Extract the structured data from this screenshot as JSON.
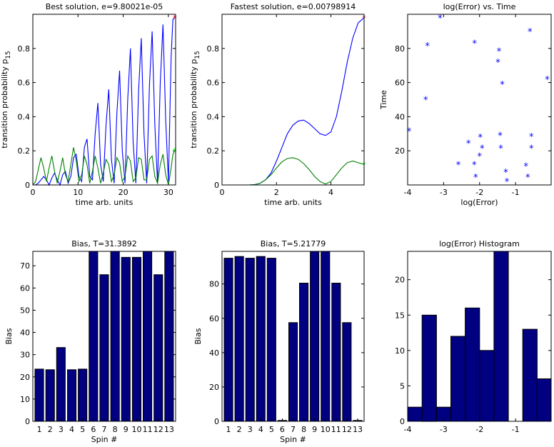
{
  "chart_data": [
    {
      "id": "best",
      "type": "line",
      "title": "Best solution, e=9.80021e-05",
      "xlabel": "time arb. units",
      "ylabel_main": "transition probability p",
      "ylabel_sub": "15",
      "xlim": [
        0,
        31.6
      ],
      "ylim": [
        0,
        1
      ],
      "xticks": [
        0,
        10,
        20,
        30
      ],
      "xtick_labels": [
        "0",
        "10",
        "20",
        "30"
      ],
      "yticks": [
        0,
        0.2,
        0.4,
        0.6,
        0.8
      ],
      "ytick_labels": [
        "0",
        "0.2",
        "0.4",
        "0.6",
        "0.8"
      ],
      "series": [
        {
          "name": "blue",
          "color": "#0000ff",
          "x": [
            0,
            0.6,
            1.2,
            1.8,
            2.4,
            3.0,
            3.6,
            4.2,
            4.8,
            5.4,
            6.0,
            6.6,
            7.2,
            7.8,
            8.4,
            9.0,
            9.6,
            10.2,
            10.8,
            11.4,
            12.0,
            12.6,
            13.2,
            13.8,
            14.4,
            15.0,
            15.6,
            16.2,
            16.8,
            17.4,
            18.0,
            18.6,
            19.2,
            19.8,
            20.4,
            21.0,
            21.6,
            22.2,
            22.8,
            23.4,
            24.0,
            24.6,
            25.2,
            25.8,
            26.4,
            27.0,
            27.6,
            28.2,
            28.8,
            29.4,
            30.0,
            30.6,
            31.0,
            31.4
          ],
          "values": [
            0,
            0.0,
            0.01,
            0.03,
            0.05,
            0.03,
            0.0,
            0.04,
            0.07,
            0.03,
            0.0,
            0.06,
            0.08,
            0.01,
            0.05,
            0.16,
            0.18,
            0.05,
            0.02,
            0.22,
            0.27,
            0.05,
            0.03,
            0.3,
            0.48,
            0.12,
            0.02,
            0.35,
            0.56,
            0.15,
            0.01,
            0.42,
            0.67,
            0.2,
            0.01,
            0.5,
            0.8,
            0.25,
            0.01,
            0.55,
            0.86,
            0.3,
            0.01,
            0.58,
            0.9,
            0.35,
            0.01,
            0.6,
            0.94,
            0.38,
            0.02,
            0.75,
            0.97,
            0.98
          ]
        },
        {
          "name": "green",
          "color": "#008000",
          "x": [
            0,
            0.6,
            1.2,
            1.8,
            2.4,
            3.0,
            3.6,
            4.2,
            4.8,
            5.4,
            6.0,
            6.6,
            7.2,
            7.8,
            8.4,
            9.0,
            9.6,
            10.2,
            10.8,
            11.4,
            12.0,
            12.6,
            13.2,
            13.8,
            14.4,
            15.0,
            15.6,
            16.2,
            16.8,
            17.4,
            18.0,
            18.6,
            19.2,
            19.8,
            20.4,
            21.0,
            21.6,
            22.2,
            22.8,
            23.4,
            24.0,
            24.6,
            25.2,
            25.8,
            26.4,
            27.0,
            27.6,
            28.2,
            28.8,
            29.4,
            30.0,
            30.6,
            31.0,
            31.4
          ],
          "values": [
            0,
            0.02,
            0.09,
            0.16,
            0.1,
            0.02,
            0.1,
            0.17,
            0.08,
            0.01,
            0.08,
            0.16,
            0.06,
            0.02,
            0.12,
            0.22,
            0.14,
            0.02,
            0.06,
            0.17,
            0.12,
            0.01,
            0.08,
            0.17,
            0.1,
            0.01,
            0.07,
            0.15,
            0.12,
            0.02,
            0.06,
            0.16,
            0.13,
            0.02,
            0.05,
            0.17,
            0.14,
            0.02,
            0.04,
            0.16,
            0.15,
            0.03,
            0.03,
            0.15,
            0.17,
            0.05,
            0.01,
            0.12,
            0.18,
            0.06,
            0.0,
            0.1,
            0.18,
            0.2
          ]
        }
      ],
      "markers": [
        {
          "x": 31.4,
          "y": 0.98,
          "color": "#ff0000"
        },
        {
          "x": 31.4,
          "y": 0.2,
          "color": "#00ff00"
        }
      ]
    },
    {
      "id": "fastest",
      "type": "line",
      "title": "Fastest solution, e=0.00798914",
      "xlabel": "time arb. units",
      "ylabel_main": "transition probability p",
      "ylabel_sub": "15",
      "xlim": [
        0,
        5.218
      ],
      "ylim": [
        0,
        1
      ],
      "xticks": [
        0,
        2,
        4
      ],
      "xtick_labels": [
        "0",
        "2",
        "4"
      ],
      "yticks": [
        0,
        0.2,
        0.4,
        0.6,
        0.8
      ],
      "ytick_labels": [
        "0",
        "0.2",
        "0.4",
        "0.6",
        "0.8"
      ],
      "series": [
        {
          "name": "blue",
          "color": "#0000ff",
          "x": [
            0,
            0.5,
            1.0,
            1.2,
            1.4,
            1.6,
            1.8,
            2.0,
            2.2,
            2.4,
            2.6,
            2.8,
            3.0,
            3.2,
            3.4,
            3.6,
            3.8,
            4.0,
            4.2,
            4.4,
            4.6,
            4.8,
            5.0,
            5.218
          ],
          "values": [
            0,
            0,
            0,
            0.002,
            0.01,
            0.03,
            0.07,
            0.14,
            0.22,
            0.3,
            0.35,
            0.375,
            0.38,
            0.36,
            0.33,
            0.3,
            0.29,
            0.31,
            0.4,
            0.55,
            0.72,
            0.86,
            0.95,
            0.98
          ]
        },
        {
          "name": "green",
          "color": "#008000",
          "x": [
            0,
            0.5,
            1.0,
            1.2,
            1.4,
            1.6,
            1.8,
            2.0,
            2.2,
            2.4,
            2.6,
            2.8,
            3.0,
            3.2,
            3.4,
            3.6,
            3.8,
            4.0,
            4.2,
            4.4,
            4.6,
            4.8,
            5.0,
            5.218
          ],
          "values": [
            0,
            0,
            0,
            0.002,
            0.01,
            0.03,
            0.06,
            0.1,
            0.135,
            0.155,
            0.16,
            0.15,
            0.125,
            0.09,
            0.05,
            0.02,
            0.005,
            0.02,
            0.06,
            0.1,
            0.13,
            0.14,
            0.13,
            0.12
          ]
        }
      ],
      "markers": [
        {
          "x": 5.218,
          "y": 0.98,
          "color": "#ff0000"
        },
        {
          "x": 5.218,
          "y": 0.12,
          "color": "#00ff00"
        }
      ]
    },
    {
      "id": "logerr-time",
      "type": "scatter",
      "title": "log(Error) vs. Time",
      "xlabel": "log(Error)",
      "ylabel": "Time",
      "xlim": [
        -4,
        -0.01
      ],
      "ylim": [
        0,
        100
      ],
      "xticks": [
        -4,
        -3,
        -2,
        -1
      ],
      "xtick_labels": [
        "-4",
        "-3",
        "-2",
        "-1"
      ],
      "yticks": [
        20,
        40,
        60,
        80
      ],
      "ytick_labels": [
        "20",
        "40",
        "60",
        "80"
      ],
      "marker_color": "#0000ff",
      "x": [
        -3.1,
        -3.45,
        -3.5,
        -3.96,
        -2.14,
        -1.46,
        -1.49,
        -1.37,
        -0.12,
        -0.6,
        -0.56,
        -0.56,
        -1.43,
        -1.41,
        -1.98,
        -2.31,
        -2.15,
        -2.0,
        -1.93,
        -2.59,
        -2.11,
        -1.27,
        -1.24,
        -0.71,
        -0.66
      ],
      "values": [
        98,
        81.5,
        50,
        31.5,
        83,
        78.5,
        72,
        59,
        62,
        90,
        28.5,
        21.5,
        29,
        21.5,
        28,
        24.5,
        12,
        17,
        21.5,
        12,
        4.5,
        7.5,
        2,
        11,
        4.5
      ]
    },
    {
      "id": "bias-best",
      "type": "bar",
      "title": "Bias, T=31.3892",
      "xlabel": "Spin #",
      "ylabel": "Bias",
      "categories": [
        "1",
        "2",
        "3",
        "4",
        "5",
        "6",
        "7",
        "8",
        "9",
        "10",
        "11",
        "12",
        "13"
      ],
      "values": [
        23.5,
        23.2,
        33.2,
        23.2,
        23.5,
        76.5,
        66,
        76.5,
        73.8,
        73.8,
        76.5,
        66,
        76.5
      ],
      "ylim": [
        0,
        76.5
      ],
      "yticks": [
        0,
        10,
        20,
        30,
        40,
        50,
        60,
        70
      ],
      "ytick_labels": [
        "0",
        "10",
        "20",
        "30",
        "40",
        "50",
        "60",
        "70"
      ]
    },
    {
      "id": "bias-fastest",
      "type": "bar",
      "title": "Bias, T=5.21779",
      "xlabel": "Spin #",
      "ylabel": "Bias",
      "categories": [
        "1",
        "2",
        "3",
        "4",
        "5",
        "6",
        "7",
        "8",
        "9",
        "10",
        "11",
        "12",
        "13"
      ],
      "values": [
        95,
        96,
        95,
        96,
        95,
        0.5,
        57.5,
        80.5,
        99,
        99,
        80.5,
        57.5,
        0.5
      ],
      "ylim": [
        0,
        99
      ],
      "yticks": [
        0,
        20,
        40,
        60,
        80
      ],
      "ytick_labels": [
        "0",
        "20",
        "40",
        "60",
        "80"
      ]
    },
    {
      "id": "histogram",
      "type": "bar",
      "title": "log(Error) Histogram",
      "xlabel": "",
      "ylabel": "",
      "bin_edges": [
        -4,
        -3.6,
        -3.2,
        -2.8,
        -2.4,
        -2.0,
        -1.6,
        -1.2,
        -0.8,
        -0.4,
        -0.01
      ],
      "values": [
        2,
        15,
        2,
        12,
        16,
        10,
        24,
        0,
        13,
        6
      ],
      "xlim": [
        -4,
        -0.01
      ],
      "ylim": [
        0,
        24
      ],
      "xticks": [
        -4,
        -3,
        -2,
        -1
      ],
      "xtick_labels": [
        "-4",
        "-3",
        "-2",
        "-1"
      ],
      "yticks": [
        0,
        5,
        10,
        15,
        20
      ],
      "ytick_labels": [
        "0",
        "5",
        "10",
        "15",
        "20"
      ]
    }
  ]
}
